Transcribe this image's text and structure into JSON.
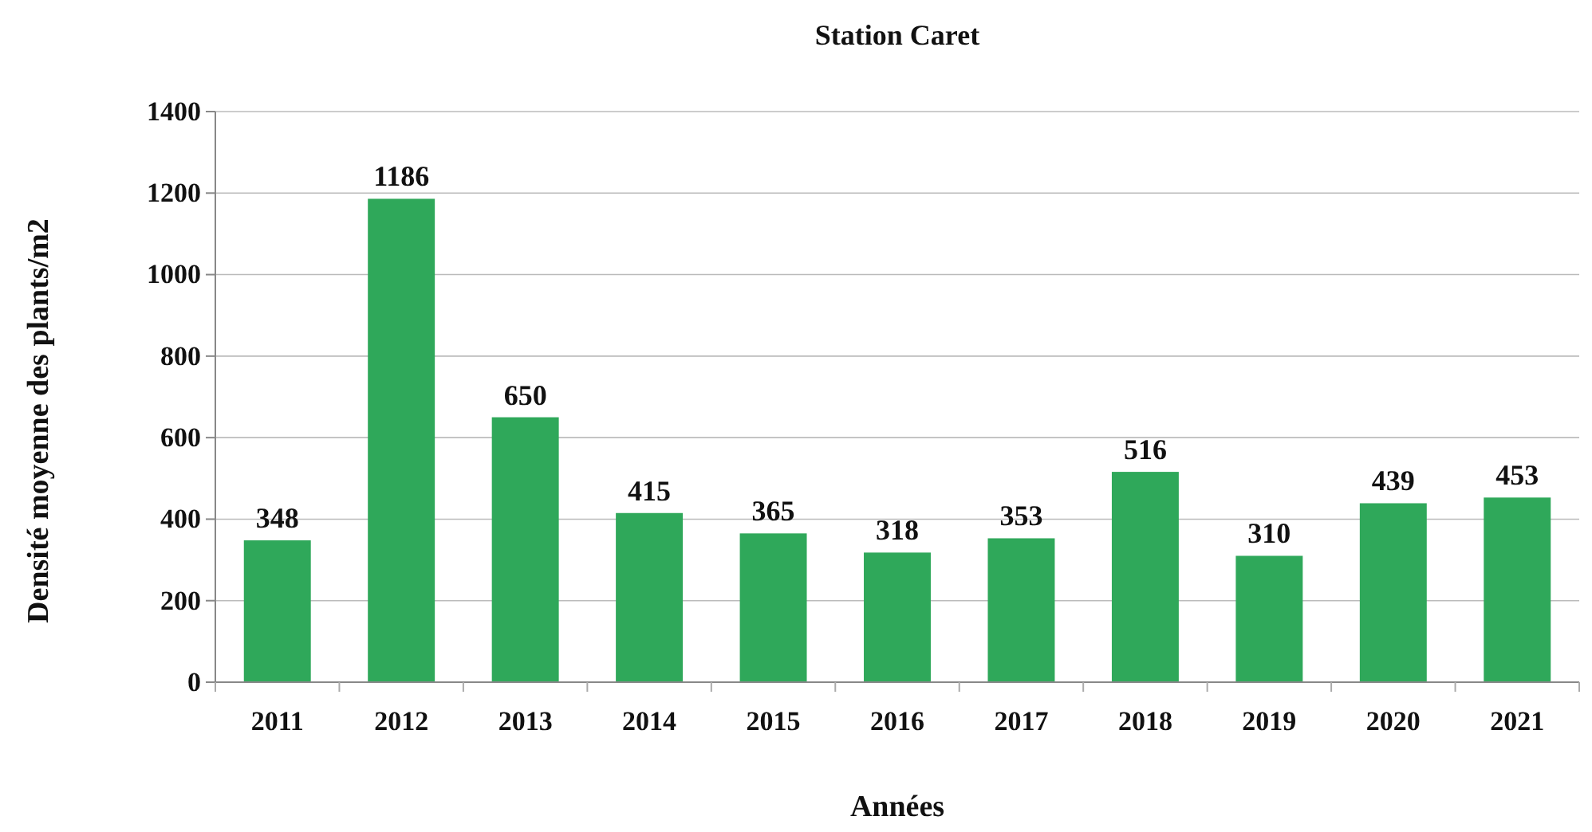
{
  "chart_data": {
    "type": "bar",
    "title": "Station Caret",
    "xlabel": "Années",
    "ylabel": "Densité moyenne des plants/m2",
    "categories": [
      "2011",
      "2012",
      "2013",
      "2014",
      "2015",
      "2016",
      "2017",
      "2018",
      "2019",
      "2020",
      "2021"
    ],
    "values": [
      348,
      1186,
      650,
      415,
      365,
      318,
      353,
      516,
      310,
      439,
      453
    ],
    "color": "#2fa85a",
    "ylim": [
      0,
      1400
    ],
    "yticks": [
      0,
      200,
      400,
      600,
      800,
      1000,
      1200,
      1400
    ],
    "grid": "y",
    "data_labels": true
  }
}
